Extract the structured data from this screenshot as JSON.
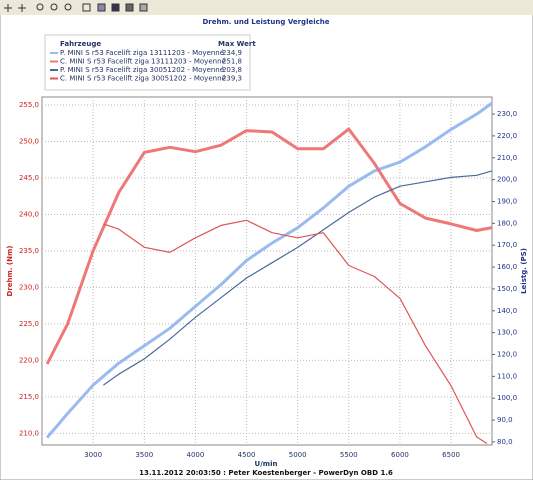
{
  "chart_data": {
    "type": "line",
    "title": "Drehm. und Leistung Vergleiche",
    "xlabel": "U/min",
    "ylabel": "Drehm. (Nm)",
    "y2label": "Leistg. (PS)",
    "footer": "13.11.2012 20:03:50 : Peter Koestenberger - PowerDyn OBD 1.6",
    "legend_header": [
      "Fahrzeuge",
      "Max Wert"
    ],
    "xlim": [
      2500,
      6900
    ],
    "xticks": [
      3000,
      3500,
      4000,
      4500,
      5000,
      5500,
      6000,
      6500
    ],
    "ylim": [
      208.4,
      256.1
    ],
    "yticks": [
      {
        "value": 210,
        "label": "210,0"
      },
      {
        "value": 215,
        "label": "215,0"
      },
      {
        "value": 220,
        "label": "220,0"
      },
      {
        "value": 225,
        "label": "225,0"
      },
      {
        "value": 230,
        "label": "230,0"
      },
      {
        "value": 235,
        "label": "235,0"
      },
      {
        "value": 240,
        "label": "240,0"
      },
      {
        "value": 245,
        "label": "245,0"
      },
      {
        "value": 250,
        "label": "250,0"
      },
      {
        "value": 255,
        "label": "255,0"
      }
    ],
    "y2lim": [
      78.6,
      237.8
    ],
    "y2ticks": [
      {
        "value": 80,
        "label": "80,0"
      },
      {
        "value": 90,
        "label": "90,0"
      },
      {
        "value": 100,
        "label": "100,0"
      },
      {
        "value": 110,
        "label": "110,0"
      },
      {
        "value": 120,
        "label": "120,0"
      },
      {
        "value": 130,
        "label": "130,0"
      },
      {
        "value": 140,
        "label": "140,0"
      },
      {
        "value": 150,
        "label": "150,0"
      },
      {
        "value": 160,
        "label": "160,0"
      },
      {
        "value": 170,
        "label": "170,0"
      },
      {
        "value": 180,
        "label": "180,0"
      },
      {
        "value": 190,
        "label": "190,0"
      },
      {
        "value": 200,
        "label": "200,0"
      },
      {
        "value": 210,
        "label": "210,0"
      },
      {
        "value": 220,
        "label": "220,0"
      },
      {
        "value": 230,
        "label": "230,0"
      }
    ],
    "grid": true,
    "series": [
      {
        "name": "P. MINI S r53 Facelift ziga 13111203 - Moyenné",
        "max_label": "234,9",
        "color": "#99bbee",
        "line_width": 3,
        "axis": "y2",
        "x": [
          2550,
          2750,
          3000,
          3250,
          3500,
          3750,
          4000,
          4250,
          4500,
          4750,
          5000,
          5250,
          5500,
          5750,
          6000,
          6250,
          6500,
          6750,
          6900
        ],
        "values": [
          82,
          93,
          106,
          116,
          124,
          132,
          142,
          152,
          163,
          171,
          178,
          187,
          197,
          204,
          208,
          215,
          223,
          230,
          235
        ]
      },
      {
        "name": "C. MINI S r53 Facelift ziga 13111203 - Moyenné",
        "max_label": "251,8",
        "color": "#ee7777",
        "line_width": 3,
        "x": [
          2550,
          2750,
          3000,
          3250,
          3500,
          3750,
          4000,
          4250,
          4500,
          4750,
          5000,
          5250,
          5500,
          5750,
          6000,
          6250,
          6500,
          6750,
          6900
        ],
        "values": [
          219.5,
          225,
          235,
          243,
          248.5,
          249.2,
          248.6,
          249.5,
          251.5,
          251.3,
          249,
          249,
          251.7,
          247,
          241.5,
          239.5,
          238.7,
          237.8,
          238.2
        ]
      },
      {
        "name": "P. MINI S r53 Facelift ziga 30051202 - Moyenné",
        "max_label": "203,8",
        "color": "#4a6a9a",
        "line_width": 1.2,
        "axis": "y2",
        "x": [
          3100,
          3250,
          3500,
          3750,
          4000,
          4250,
          4500,
          4750,
          5000,
          5250,
          5500,
          5750,
          6000,
          6250,
          6500,
          6750,
          6900
        ],
        "values": [
          106,
          111,
          118,
          127,
          137,
          146,
          155,
          162,
          169,
          177,
          185,
          192,
          197,
          199,
          201,
          202,
          204
        ]
      },
      {
        "name": "C. MINI S r53 Facelift ziga 30051202 - Moyenné",
        "max_label": "239,3",
        "color": "#dd5555",
        "line_width": 1.2,
        "x": [
          3100,
          3250,
          3500,
          3750,
          4000,
          4250,
          4500,
          4750,
          5000,
          5250,
          5500,
          5750,
          6000,
          6250,
          6500,
          6750,
          6850
        ],
        "values": [
          238.7,
          238,
          235.5,
          234.8,
          236.8,
          238.5,
          239.2,
          237.5,
          236.8,
          237.5,
          233,
          231.5,
          228.5,
          222,
          216.5,
          209.5,
          208.6
        ]
      }
    ]
  }
}
